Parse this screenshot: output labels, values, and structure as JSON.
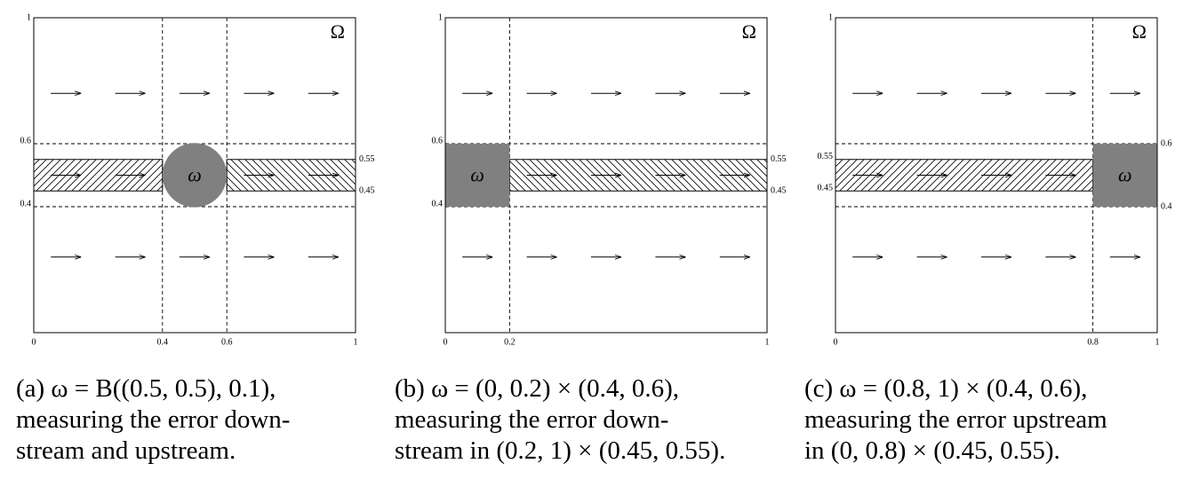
{
  "panels": [
    {
      "domain_label": "Ω",
      "region_label": "ω",
      "left_ticks": [
        1,
        0.6,
        0.4
      ],
      "right_ticks": [
        0.55,
        0.45
      ],
      "x_ticks": [
        0,
        0.4,
        0.6,
        1
      ],
      "caption": [
        "(a)  ω  =  B((0.5, 0.5), 0.1),",
        "measuring  the  error  down-",
        "stream and upstream."
      ]
    },
    {
      "domain_label": "Ω",
      "region_label": "ω",
      "left_ticks": [
        1,
        0.6,
        0.4
      ],
      "right_ticks": [
        0.55,
        0.45
      ],
      "x_ticks": [
        0,
        0.2,
        1
      ],
      "caption": [
        "(b)  ω  =  (0, 0.2)  ×  (0.4, 0.6),",
        "measuring   the   error   down-",
        "stream in (0.2, 1) × (0.45, 0.55)."
      ]
    },
    {
      "domain_label": "Ω",
      "region_label": "ω",
      "left_ticks": [
        1,
        0.55,
        0.45
      ],
      "right_ticks": [
        0.6,
        0.4
      ],
      "x_ticks": [
        0,
        0.8,
        1
      ],
      "caption": [
        "(c)  ω  =  (0.8, 1)  ×  (0.4, 0.6),",
        "measuring the error upstream",
        "in (0, 0.8) × (0.45, 0.55)."
      ]
    }
  ]
}
